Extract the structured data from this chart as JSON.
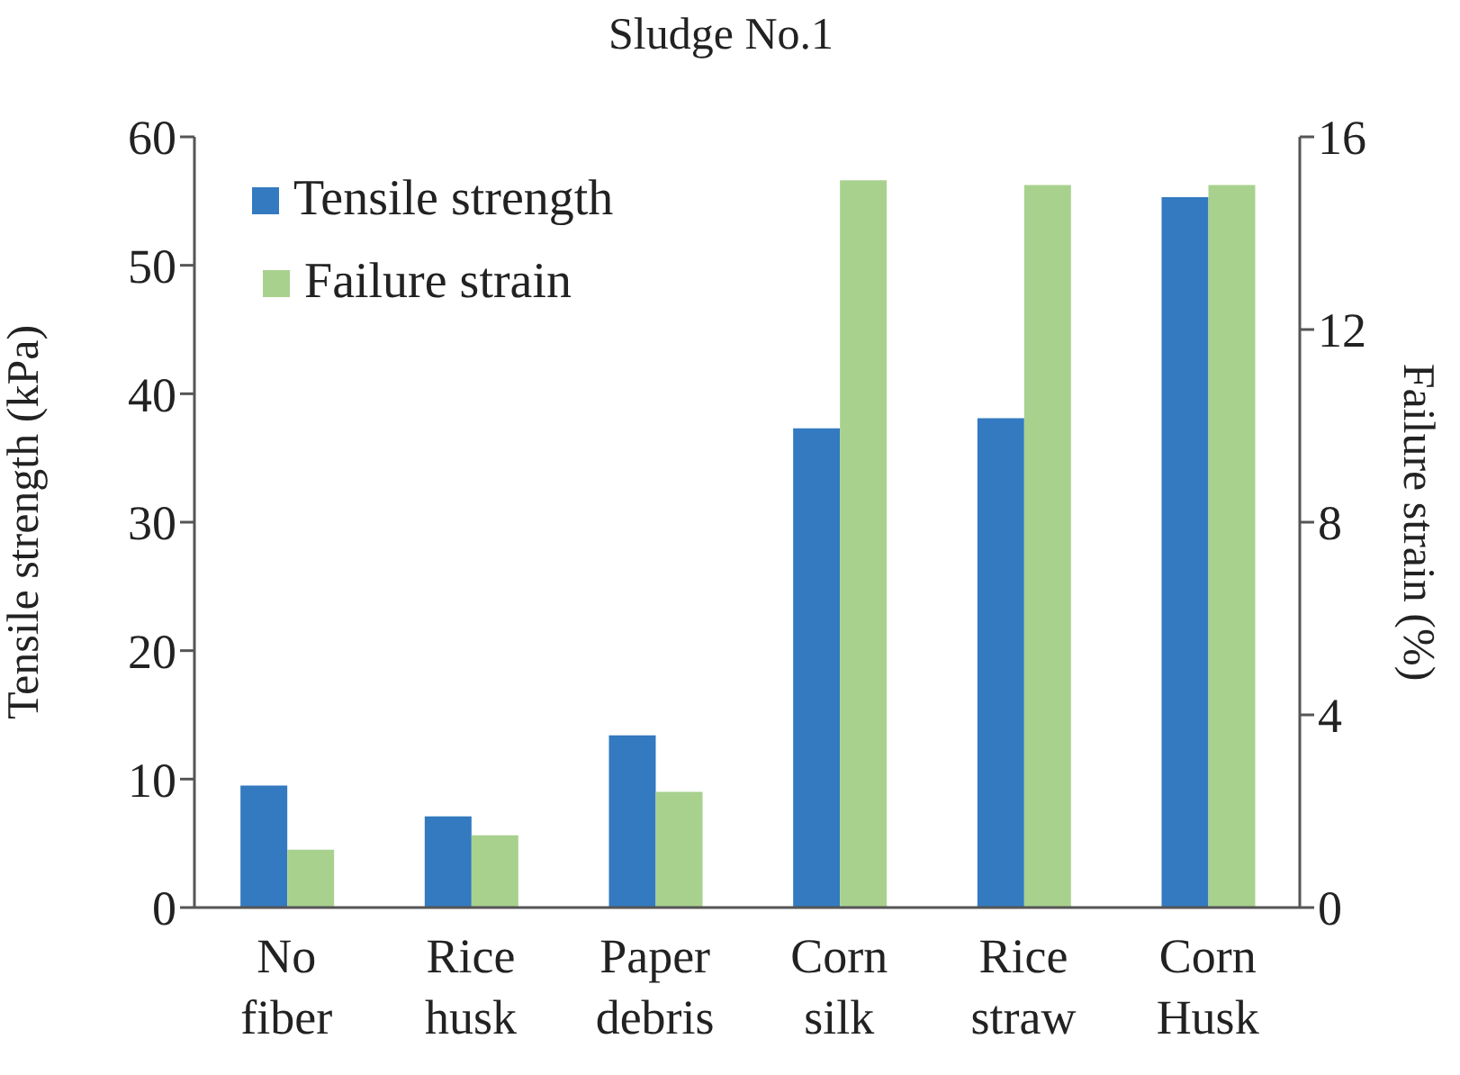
{
  "chart_data": {
    "type": "bar",
    "title": "Sludge No.1",
    "categories": [
      "No fiber",
      "Rice husk",
      "Paper debris",
      "Corn silk",
      "Rice straw",
      "Corn Husk"
    ],
    "series": [
      {
        "name": "Tensile strength",
        "color": "#337ac0",
        "values": [
          9.5,
          7.1,
          13.4,
          37.3,
          38.1,
          55.3
        ]
      },
      {
        "name": "Failure strain",
        "color": "#a9d18e",
        "axis": "y2",
        "values": [
          1.2,
          1.5,
          2.4,
          15.1,
          15.0,
          15.0
        ]
      }
    ],
    "ylabel": "Tensile strength (kPa)",
    "y2label": "Failure strain (%)",
    "ylim": [
      0,
      60
    ],
    "yticks": [
      0,
      10,
      20,
      30,
      40,
      50,
      60
    ],
    "y2lim": [
      0,
      16
    ],
    "y2ticks": [
      0,
      4,
      8,
      12,
      16
    ],
    "legend": "top left",
    "grid": false
  }
}
